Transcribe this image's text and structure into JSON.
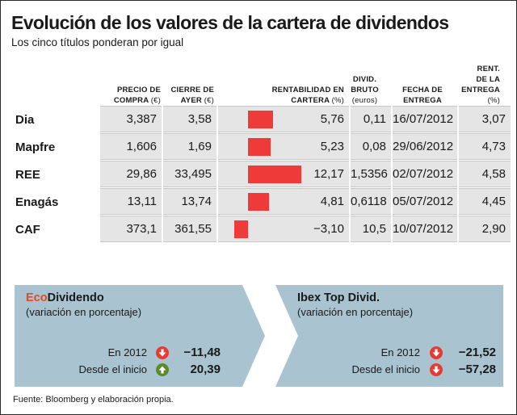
{
  "title": "Evolución de los valores de la cartera de dividendos",
  "subtitle": "Los cinco títulos ponderan por igual",
  "headers": {
    "precio": {
      "l1": "PRECIO DE",
      "l2": "COMPRA",
      "unit": "(€)"
    },
    "cierre": {
      "l1": "CIERRE DE",
      "l2": "AYER",
      "unit": "(€)"
    },
    "rent": {
      "l1": "RENTABILIDAD EN",
      "l2": "CARTERA",
      "unit": "(%)"
    },
    "divid": {
      "l1": "DIVID.",
      "l2": "BRUTO",
      "unit": "(euros)"
    },
    "fecha": {
      "l1": "FECHA DE",
      "l2": "ENTREGA"
    },
    "rentent": {
      "l1": "RENT.",
      "l2": "DE LA",
      "l3": "ENTREGA",
      "unit": "(%)"
    }
  },
  "rows": [
    {
      "name": "Dia",
      "precio": "3,387",
      "cierre": "3,58",
      "rent": "5,76",
      "divid": "0,11",
      "fecha": "16/07/2012",
      "rentent": "3,07"
    },
    {
      "name": "Mapfre",
      "precio": "1,606",
      "cierre": "1,69",
      "rent": "5,23",
      "divid": "0,08",
      "fecha": "29/06/2012",
      "rentent": "4,73"
    },
    {
      "name": "REE",
      "precio": "29,86",
      "cierre": "33,495",
      "rent": "12,17",
      "divid": "1,5356",
      "fecha": "02/07/2012",
      "rentent": "4,58"
    },
    {
      "name": "Enagás",
      "precio": "13,11",
      "cierre": "13,74",
      "rent": "4,81",
      "divid": "0,6118",
      "fecha": "05/07/2012",
      "rentent": "4,45"
    },
    {
      "name": "CAF",
      "precio": "373,1",
      "cierre": "361,55",
      "rent": "−3,10",
      "divid": "10,5",
      "fecha": "10/07/2012",
      "rentent": "2,90"
    }
  ],
  "chart_data": {
    "type": "bar",
    "categories": [
      "Dia",
      "Mapfre",
      "REE",
      "Enagás",
      "CAF"
    ],
    "values": [
      5.76,
      5.23,
      12.17,
      4.81,
      -3.1
    ],
    "title": "Evolución de los valores de la cartera de dividendos",
    "subtitle": "Los cinco títulos ponderan por igual",
    "ylabel": "RENTABILIDAD EN CARTERA (%)",
    "bar_color": "#ee3b3a"
  },
  "panels": {
    "left": {
      "name_accent": "Eco",
      "name": "Dividendo",
      "sub": "(variación en porcentaje)",
      "rows": [
        {
          "label": "En 2012",
          "value": "−11,48",
          "dir": "down"
        },
        {
          "label": "Desde el inicio",
          "value": "20,39",
          "dir": "up"
        }
      ]
    },
    "right": {
      "name": "Ibex Top Divid.",
      "sub": "(variación en porcentaje)",
      "rows": [
        {
          "label": "En 2012",
          "value": "−21,52",
          "dir": "down"
        },
        {
          "label": "Desde el inicio",
          "value": "−57,28",
          "dir": "down"
        }
      ]
    }
  },
  "colors": {
    "down": "#e63a33",
    "up": "#5a8a2c",
    "panel": "#a9c3d0",
    "accent": "#e8481c",
    "bar": "#ee3b3a"
  },
  "source": "Fuente: Bloomberg y elaboración propia."
}
